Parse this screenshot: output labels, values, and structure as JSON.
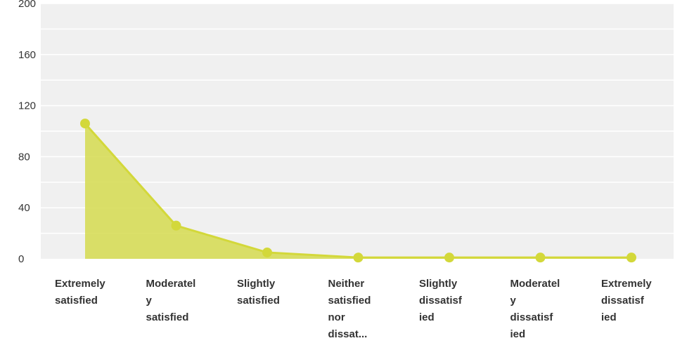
{
  "chart_data": {
    "type": "area",
    "title": "",
    "xlabel": "",
    "ylabel": "",
    "ylim": [
      0,
      200
    ],
    "yticks": [
      "0",
      "40",
      "80",
      "120",
      "160",
      "200"
    ],
    "grid": true,
    "categories": [
      [
        "Extremely",
        "satisfied"
      ],
      [
        "Moderatel",
        "y",
        "satisfied"
      ],
      [
        "Slightly",
        "satisfied"
      ],
      [
        "Neither",
        "satisfied",
        "nor",
        "dissat..."
      ],
      [
        "Slightly",
        "dissatisf",
        "ied"
      ],
      [
        "Moderatel",
        "y",
        "dissatisf",
        "ied"
      ],
      [
        "Extremely",
        "dissatisf",
        "ied"
      ]
    ],
    "series": [
      {
        "values": [
          106,
          26,
          5,
          1,
          1,
          1,
          1
        ]
      }
    ],
    "colors": {
      "plot_background": "#f0f0f0",
      "grid": "#ffffff",
      "line": "#d3d83a",
      "fill": "#d5db4f",
      "marker": "#d3d83a",
      "text": "#333333"
    }
  }
}
